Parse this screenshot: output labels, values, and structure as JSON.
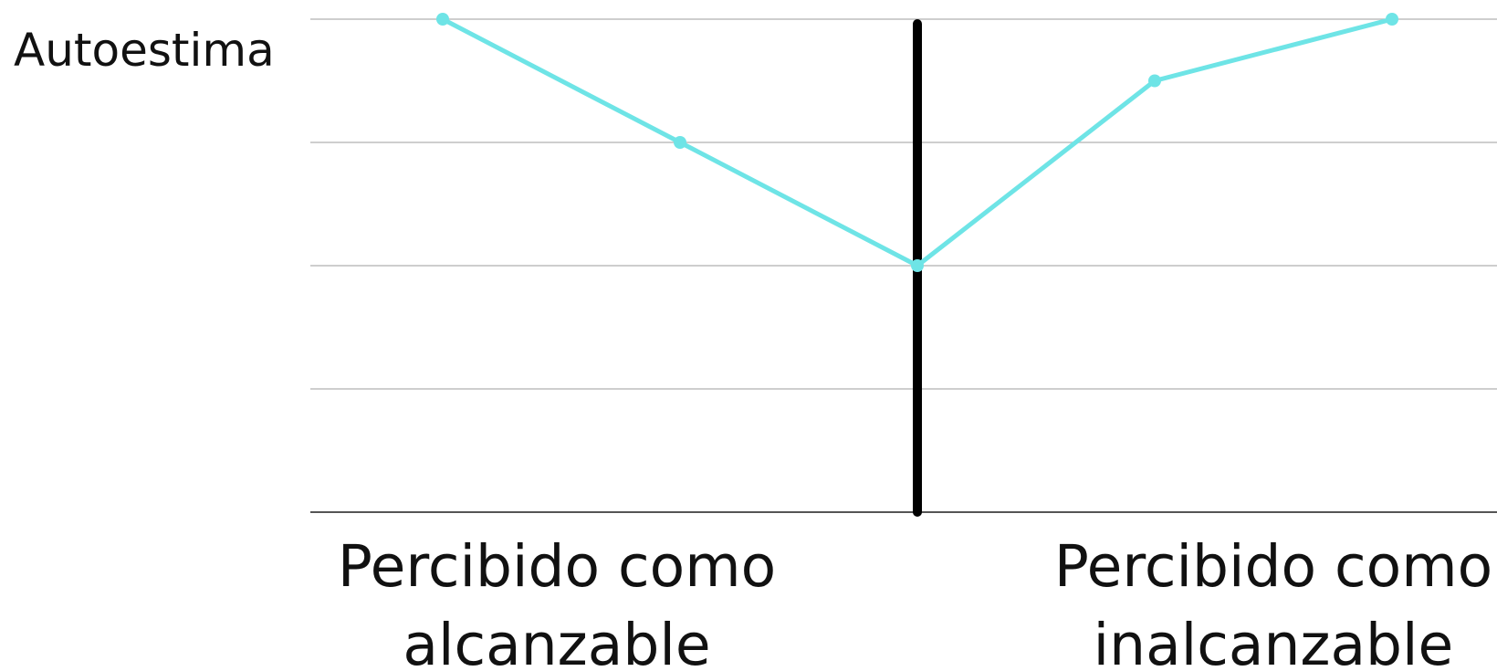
{
  "chart_data": {
    "type": "line",
    "ylabel": "Autoestima",
    "xlabel": "",
    "ylim": [
      0,
      4
    ],
    "grid": true,
    "categories": [
      {
        "label_lines": [
          "Percibido como",
          "alcanzable"
        ]
      },
      {
        "label_lines": [
          "Percibido como",
          "inalcanzable"
        ]
      }
    ],
    "divider": {
      "at_x": 2
    },
    "series": [
      {
        "color": "#6EE4E6",
        "points": [
          {
            "x": 0,
            "y": 4
          },
          {
            "x": 1,
            "y": 3
          },
          {
            "x": 2,
            "y": 2
          },
          {
            "x": 3,
            "y": 3.5
          },
          {
            "x": 4,
            "y": 4
          }
        ]
      }
    ],
    "colors": {
      "line": "#6EE4E6",
      "divider": "#000000",
      "grid": "#BDBDBD",
      "baseline": "#555555",
      "text": "#111111"
    }
  }
}
